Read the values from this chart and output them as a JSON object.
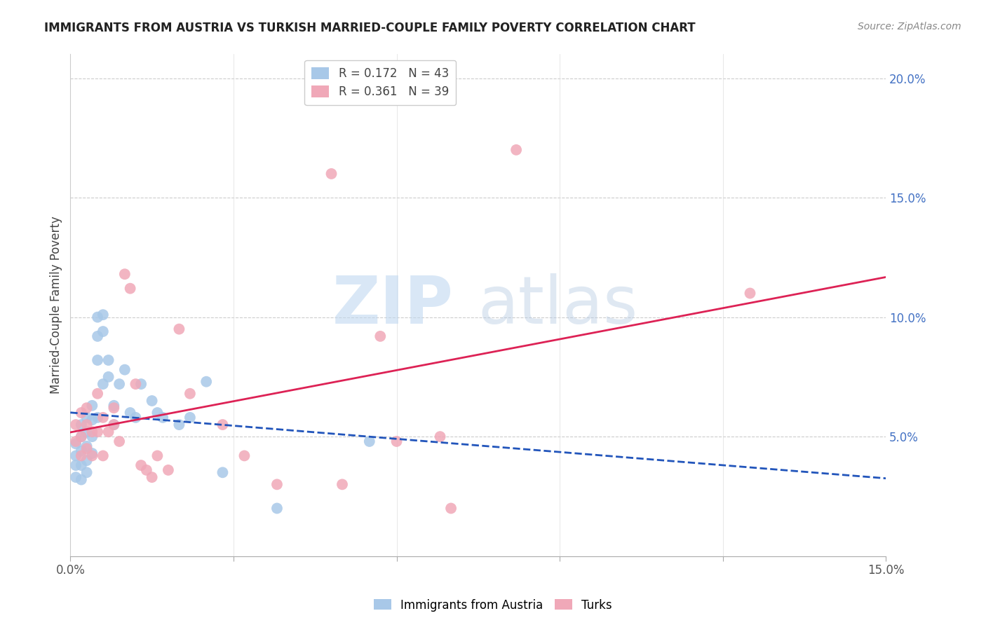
{
  "title": "IMMIGRANTS FROM AUSTRIA VS TURKISH MARRIED-COUPLE FAMILY POVERTY CORRELATION CHART",
  "source": "Source: ZipAtlas.com",
  "ylabel": "Married-Couple Family Poverty",
  "xlim": [
    0.0,
    0.15
  ],
  "ylim": [
    0.0,
    0.21
  ],
  "austria_R": 0.172,
  "austria_N": 43,
  "turks_R": 0.361,
  "turks_N": 39,
  "austria_color": "#a8c8e8",
  "turks_color": "#f0a8b8",
  "austria_line_color": "#2255bb",
  "turks_line_color": "#dd2255",
  "austria_points_x": [
    0.001,
    0.001,
    0.001,
    0.001,
    0.002,
    0.002,
    0.002,
    0.002,
    0.002,
    0.003,
    0.003,
    0.003,
    0.003,
    0.003,
    0.004,
    0.004,
    0.004,
    0.004,
    0.005,
    0.005,
    0.005,
    0.005,
    0.006,
    0.006,
    0.006,
    0.007,
    0.007,
    0.008,
    0.008,
    0.009,
    0.01,
    0.011,
    0.012,
    0.013,
    0.015,
    0.016,
    0.017,
    0.02,
    0.022,
    0.025,
    0.028,
    0.038,
    0.055
  ],
  "austria_points_y": [
    0.047,
    0.042,
    0.038,
    0.033,
    0.055,
    0.05,
    0.044,
    0.038,
    0.032,
    0.058,
    0.052,
    0.046,
    0.04,
    0.035,
    0.063,
    0.057,
    0.05,
    0.043,
    0.1,
    0.092,
    0.082,
    0.058,
    0.101,
    0.094,
    0.072,
    0.082,
    0.075,
    0.063,
    0.055,
    0.072,
    0.078,
    0.06,
    0.058,
    0.072,
    0.065,
    0.06,
    0.058,
    0.055,
    0.058,
    0.073,
    0.035,
    0.02,
    0.048
  ],
  "turks_points_x": [
    0.001,
    0.001,
    0.002,
    0.002,
    0.002,
    0.003,
    0.003,
    0.003,
    0.004,
    0.004,
    0.005,
    0.005,
    0.006,
    0.006,
    0.007,
    0.008,
    0.008,
    0.009,
    0.01,
    0.011,
    0.012,
    0.013,
    0.014,
    0.015,
    0.016,
    0.018,
    0.02,
    0.022,
    0.028,
    0.032,
    0.038,
    0.048,
    0.05,
    0.057,
    0.06,
    0.068,
    0.07,
    0.082,
    0.125
  ],
  "turks_points_y": [
    0.055,
    0.048,
    0.06,
    0.05,
    0.042,
    0.062,
    0.055,
    0.045,
    0.052,
    0.042,
    0.068,
    0.052,
    0.058,
    0.042,
    0.052,
    0.062,
    0.055,
    0.048,
    0.118,
    0.112,
    0.072,
    0.038,
    0.036,
    0.033,
    0.042,
    0.036,
    0.095,
    0.068,
    0.055,
    0.042,
    0.03,
    0.16,
    0.03,
    0.092,
    0.048,
    0.05,
    0.02,
    0.17,
    0.11
  ],
  "watermark_zip": "ZIP",
  "watermark_atlas": "atlas",
  "background_color": "#ffffff",
  "grid_color": "#cccccc"
}
